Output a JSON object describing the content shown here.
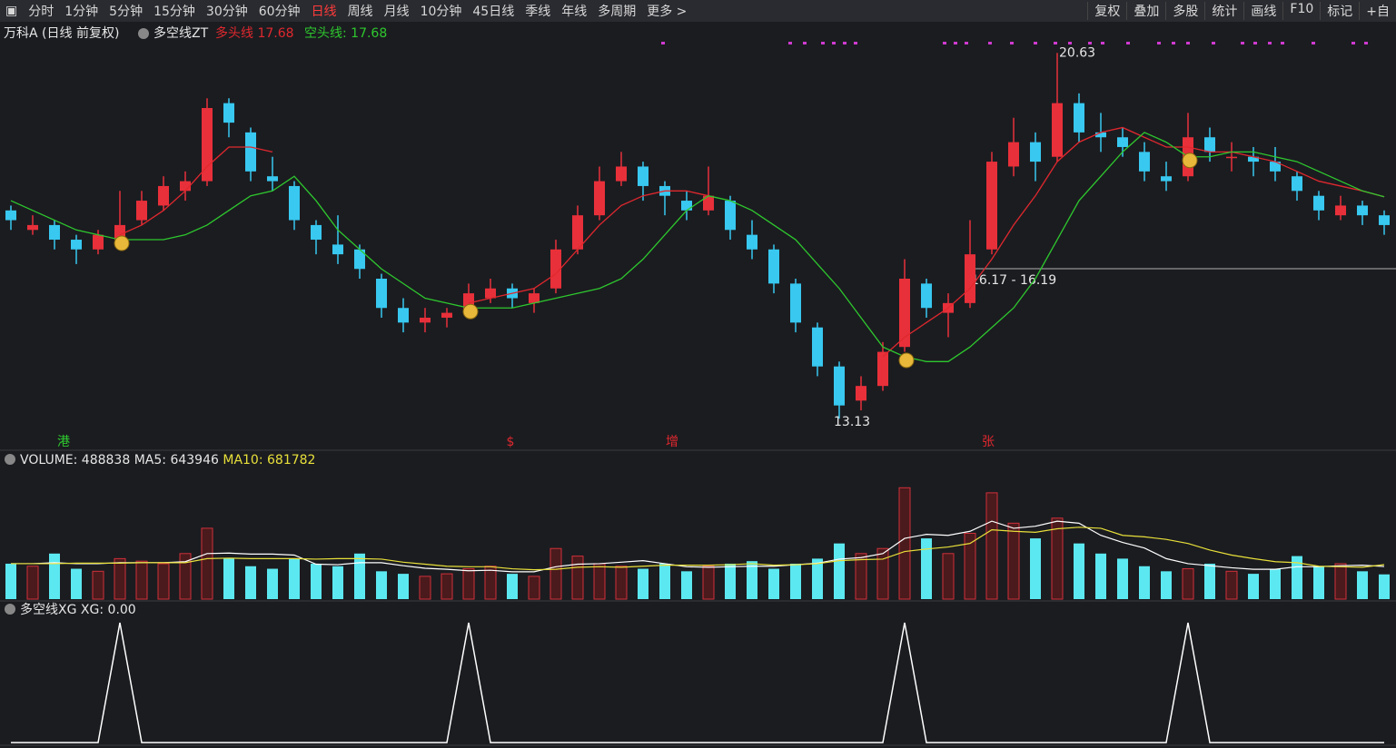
{
  "toolbar": {
    "left": [
      "分时",
      "1分钟",
      "5分钟",
      "15分钟",
      "30分钟",
      "60分钟",
      "日线",
      "周线",
      "月线",
      "10分钟",
      "45日线",
      "季线",
      "年线",
      "多周期",
      "更多 >"
    ],
    "active": 6,
    "right": [
      "复权",
      "叠加",
      "多股",
      "统计",
      "画线",
      "F10",
      "标记",
      "+自"
    ]
  },
  "chart_data": {
    "type": "candlestick",
    "title": "万科A (日线 前复权)",
    "indicator": "多空线ZT",
    "ylim": [
      12.5,
      21.25
    ],
    "up_color": "#e8303a",
    "down_color": "#38c8f0",
    "candles": [
      [
        17.4,
        17.5,
        17.0,
        17.2
      ],
      [
        17.0,
        17.3,
        16.9,
        17.1
      ],
      [
        17.1,
        17.2,
        16.6,
        16.8
      ],
      [
        16.8,
        16.9,
        16.3,
        16.6
      ],
      [
        16.6,
        17.0,
        16.5,
        16.9
      ],
      [
        16.8,
        17.8,
        16.7,
        17.1
      ],
      [
        17.2,
        17.8,
        17.1,
        17.6
      ],
      [
        17.5,
        18.1,
        17.4,
        17.9
      ],
      [
        17.8,
        18.2,
        17.6,
        18.0
      ],
      [
        18.0,
        19.7,
        17.9,
        19.5
      ],
      [
        19.6,
        19.7,
        18.9,
        19.2
      ],
      [
        19.0,
        19.1,
        18.0,
        18.2
      ],
      [
        18.1,
        18.5,
        17.8,
        18.0
      ],
      [
        17.9,
        18.0,
        17.0,
        17.2
      ],
      [
        17.1,
        17.2,
        16.5,
        16.8
      ],
      [
        16.7,
        17.3,
        16.3,
        16.5
      ],
      [
        16.6,
        16.7,
        16.0,
        16.2
      ],
      [
        16.0,
        16.1,
        15.2,
        15.4
      ],
      [
        15.4,
        15.6,
        14.9,
        15.1
      ],
      [
        15.1,
        15.4,
        14.9,
        15.2
      ],
      [
        15.2,
        15.4,
        15.0,
        15.3
      ],
      [
        15.3,
        15.9,
        15.2,
        15.7
      ],
      [
        15.6,
        16.0,
        15.5,
        15.8
      ],
      [
        15.8,
        15.9,
        15.4,
        15.6
      ],
      [
        15.5,
        15.8,
        15.3,
        15.7
      ],
      [
        15.8,
        16.8,
        15.7,
        16.6
      ],
      [
        16.6,
        17.5,
        16.5,
        17.3
      ],
      [
        17.3,
        18.3,
        17.2,
        18.0
      ],
      [
        18.0,
        18.6,
        17.9,
        18.3
      ],
      [
        18.3,
        18.4,
        17.6,
        17.9
      ],
      [
        17.9,
        18.0,
        17.3,
        17.7
      ],
      [
        17.6,
        17.8,
        17.2,
        17.4
      ],
      [
        17.4,
        18.3,
        17.3,
        17.7
      ],
      [
        17.6,
        17.7,
        16.8,
        17.0
      ],
      [
        16.9,
        17.2,
        16.4,
        16.6
      ],
      [
        16.6,
        16.7,
        15.7,
        15.9
      ],
      [
        15.9,
        16.0,
        14.9,
        15.1
      ],
      [
        15.0,
        15.1,
        14.0,
        14.2
      ],
      [
        14.2,
        14.3,
        13.13,
        13.4
      ],
      [
        13.5,
        14.0,
        13.3,
        13.8
      ],
      [
        13.8,
        14.7,
        13.7,
        14.5
      ],
      [
        14.6,
        16.4,
        14.5,
        16.0
      ],
      [
        15.9,
        16.0,
        15.2,
        15.4
      ],
      [
        15.3,
        15.7,
        14.8,
        15.5
      ],
      [
        15.5,
        17.2,
        15.4,
        16.5
      ],
      [
        16.6,
        18.6,
        16.5,
        18.4
      ],
      [
        18.3,
        19.3,
        18.1,
        18.8
      ],
      [
        18.8,
        19.0,
        18.0,
        18.4
      ],
      [
        18.5,
        20.63,
        18.4,
        19.6
      ],
      [
        19.6,
        19.8,
        18.8,
        19.0
      ],
      [
        19.0,
        19.4,
        18.6,
        18.9
      ],
      [
        18.9,
        19.1,
        18.5,
        18.7
      ],
      [
        18.6,
        18.8,
        18.0,
        18.2
      ],
      [
        18.1,
        18.4,
        17.8,
        18.0
      ],
      [
        18.1,
        19.4,
        18.0,
        18.9
      ],
      [
        18.9,
        19.1,
        18.4,
        18.6
      ],
      [
        18.5,
        18.8,
        18.2,
        18.5
      ],
      [
        18.5,
        18.7,
        18.1,
        18.4
      ],
      [
        18.4,
        18.7,
        18.0,
        18.2
      ],
      [
        18.1,
        18.2,
        17.6,
        17.8
      ],
      [
        17.7,
        17.8,
        17.2,
        17.4
      ],
      [
        17.3,
        17.7,
        17.2,
        17.5
      ],
      [
        17.5,
        17.6,
        17.1,
        17.3
      ],
      [
        17.3,
        17.4,
        16.9,
        17.1
      ]
    ],
    "series": [
      {
        "name": "多头线",
        "color": "#e0282e",
        "values": [
          null,
          null,
          null,
          null,
          null,
          16.9,
          17.1,
          17.4,
          17.8,
          18.3,
          18.7,
          18.7,
          18.6,
          null,
          null,
          null,
          null,
          null,
          null,
          null,
          null,
          15.5,
          15.6,
          15.7,
          15.8,
          16.1,
          16.6,
          17.1,
          17.5,
          17.7,
          17.8,
          17.8,
          17.7,
          null,
          null,
          null,
          null,
          null,
          null,
          null,
          14.4,
          14.8,
          15.1,
          15.4,
          15.8,
          16.4,
          17.1,
          17.7,
          18.4,
          18.8,
          19.0,
          19.1,
          18.9,
          18.7,
          18.7,
          18.6,
          18.6,
          18.5,
          18.4,
          18.2,
          18.0,
          17.9,
          17.8,
          17.68
        ]
      },
      {
        "name": "空头线",
        "color": "#2ec82e",
        "values": [
          17.6,
          17.4,
          17.2,
          17.0,
          16.9,
          16.8,
          16.8,
          16.8,
          16.9,
          17.1,
          17.4,
          17.7,
          17.8,
          18.1,
          17.6,
          17.0,
          16.6,
          16.2,
          15.9,
          15.6,
          15.5,
          15.4,
          15.4,
          15.4,
          15.5,
          15.6,
          15.7,
          15.8,
          16.0,
          16.4,
          16.9,
          17.4,
          17.7,
          17.6,
          17.4,
          17.1,
          16.8,
          16.3,
          15.8,
          15.2,
          14.6,
          14.4,
          14.3,
          14.3,
          14.6,
          15.0,
          15.4,
          16.0,
          16.8,
          17.6,
          18.1,
          18.6,
          19.0,
          18.8,
          18.5,
          18.5,
          18.6,
          18.6,
          18.5,
          18.4,
          18.2,
          18.0,
          17.8,
          17.68
        ]
      }
    ],
    "markers": [
      "港",
      "$",
      "增",
      "张"
    ],
    "range_label": "16.17 - 16.19",
    "volume": {
      "label": "VOLUME",
      "ylim": [
        0,
        2600000
      ],
      "values": [
        700000,
        650000,
        900000,
        600000,
        550000,
        800000,
        750000,
        700000,
        900000,
        1400000,
        800000,
        650000,
        600000,
        800000,
        700000,
        650000,
        900000,
        550000,
        500000,
        450000,
        500000,
        600000,
        650000,
        500000,
        450000,
        1000000,
        850000,
        700000,
        650000,
        600000,
        700000,
        550000,
        650000,
        700000,
        750000,
        600000,
        700000,
        800000,
        1100000,
        900000,
        1000000,
        2200000,
        1200000,
        900000,
        1300000,
        2100000,
        1500000,
        1200000,
        1600000,
        1100000,
        900000,
        800000,
        650000,
        550000,
        600000,
        700000,
        550000,
        500000,
        600000,
        850000,
        650000,
        700000,
        550000,
        488838
      ],
      "series": [
        {
          "name": "MA5",
          "color": "#ffffff",
          "values": [
            700000,
            700000,
            720000,
            700000,
            700000,
            720000,
            720000,
            720000,
            740000,
            900000,
            910000,
            890000,
            890000,
            870000,
            690000,
            680000,
            720000,
            720000,
            660000,
            610000,
            590000,
            560000,
            570000,
            540000,
            540000,
            640000,
            690000,
            700000,
            730000,
            760000,
            700000,
            640000,
            630000,
            640000,
            650000,
            650000,
            680000,
            710000,
            790000,
            820000,
            900000,
            1200000,
            1280000,
            1260000,
            1340000,
            1540000,
            1400000,
            1440000,
            1540000,
            1500000,
            1260000,
            1120000,
            1010000,
            800000,
            700000,
            660000,
            620000,
            590000,
            590000,
            640000,
            640000,
            660000,
            670000,
            643946
          ]
        },
        {
          "name": "MA10",
          "color": "#e8e03a",
          "values": [
            700000,
            700000,
            700000,
            710000,
            710000,
            710000,
            720000,
            720000,
            720000,
            800000,
            810000,
            800000,
            800000,
            800000,
            790000,
            800000,
            800000,
            790000,
            730000,
            690000,
            650000,
            640000,
            640000,
            600000,
            580000,
            590000,
            630000,
            640000,
            630000,
            650000,
            670000,
            670000,
            670000,
            680000,
            700000,
            670000,
            680000,
            700000,
            760000,
            780000,
            790000,
            940000,
            990000,
            1030000,
            1100000,
            1370000,
            1340000,
            1320000,
            1390000,
            1420000,
            1400000,
            1260000,
            1230000,
            1180000,
            1100000,
            970000,
            870000,
            800000,
            740000,
            720000,
            650000,
            640000,
            630000,
            681782
          ]
        }
      ]
    },
    "xg": {
      "title": "多空线XG",
      "name": "XG",
      "ylim": [
        0,
        1
      ],
      "current": {
        "value": 0,
        "label": "0.00"
      },
      "values": [
        0,
        0,
        0,
        0,
        0,
        1,
        0,
        0,
        0,
        0,
        0,
        0,
        0,
        0,
        0,
        0,
        0,
        0,
        0,
        0,
        0,
        1,
        0,
        0,
        0,
        0,
        0,
        0,
        0,
        0,
        0,
        0,
        0,
        0,
        0,
        0,
        0,
        0,
        0,
        0,
        0,
        1,
        0,
        0,
        0,
        0,
        0,
        0,
        0,
        0,
        0,
        0,
        0,
        0,
        1,
        0,
        0,
        0,
        0,
        0,
        0,
        0,
        0,
        0
      ]
    }
  }
}
